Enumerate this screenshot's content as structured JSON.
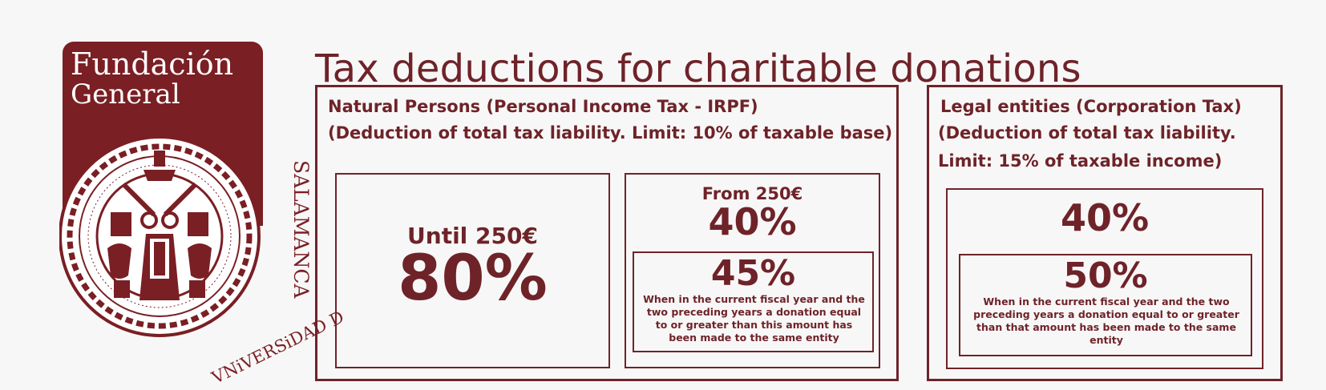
{
  "logo": {
    "line1": "Fundación",
    "line2": "General",
    "university_vertical": "SALAMANCA",
    "university_curved": "VNiVERSiDAD D",
    "colors": {
      "brand": "#7a1f24",
      "text": "#6e2329"
    }
  },
  "title": "Tax deductions for charitable donations",
  "natural_persons": {
    "heading": "Natural Persons (Personal Income Tax - IRPF)",
    "subheading": "(Deduction of total tax liability. Limit: 10% of taxable base)",
    "tier1": {
      "label": "Until 250€",
      "rate": "80%"
    },
    "tier2": {
      "label": "From 250€",
      "rate": "40%",
      "recurring_rate": "45%",
      "recurring_note": "When in the current fiscal year and the two preceding years a donation equal to or greater than this amount has been made to the same entity"
    }
  },
  "legal_entities": {
    "heading": "Legal entities (Corporation Tax)",
    "subheading_line1": "(Deduction of total tax liability.",
    "subheading_line2": "Limit: 15% of taxable income)",
    "rate": "40%",
    "recurring_rate": "50%",
    "recurring_note": "When in the current fiscal year and the two preceding years a donation equal to or greater than that amount has been made to the same entity"
  }
}
